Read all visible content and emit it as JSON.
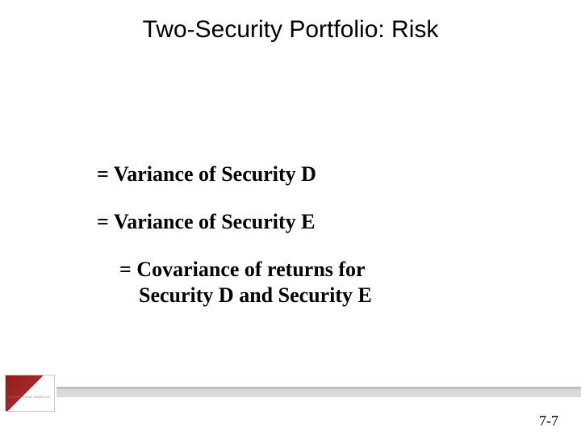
{
  "title": "Two-Security Portfolio: Risk",
  "lines": {
    "l1": "= Variance of Security D",
    "l2": "= Variance of Security E",
    "l3a": "= Covariance of returns for",
    "l3b": "Security D and Security E"
  },
  "page_number": "7-7",
  "colors": {
    "background": "#ffffff",
    "text": "#000000",
    "rule": "#d9d9d9",
    "rule_edge": "#bfbfbf",
    "thumb_accent": "#8f1d1d"
  },
  "fonts": {
    "title_family": "Arial",
    "title_size_pt": 30,
    "body_family": "Times New Roman",
    "body_size_pt": 26,
    "body_weight": "bold"
  },
  "thumb_caption": "BODIE  KANE  MARCUS"
}
